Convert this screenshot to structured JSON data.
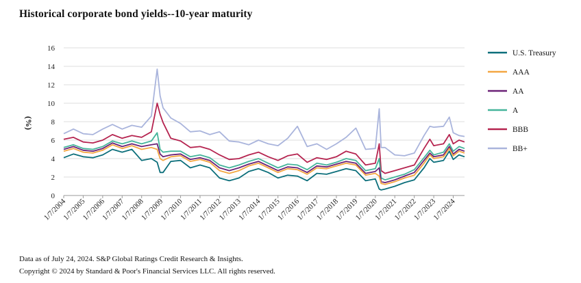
{
  "title": "Historical corporate bond yields--10-year maturity",
  "footer": {
    "line1": "Data as of July 24, 2024. S&P Global Ratings Credit Research & Insights.",
    "line2": "Copyright © 2024 by Standard & Poor's Financial Services LLC. All rights reserved."
  },
  "chart_data": {
    "type": "line",
    "title": "Historical corporate bond yields--10-year maturity",
    "ylabel": "(%)",
    "xlabel": "",
    "ylim": [
      0,
      16
    ],
    "yticks": [
      0,
      2,
      4,
      6,
      8,
      10,
      12,
      14,
      16
    ],
    "xlim": [
      2004.0,
      2024.58
    ],
    "categories": [
      "1/7/2004",
      "1/7/2005",
      "1/7/2006",
      "1/7/2007",
      "1/7/2008",
      "1/7/2009",
      "1/7/2010",
      "1/7/2011",
      "1/7/2012",
      "1/7/2013",
      "1/7/2014",
      "1/7/2015",
      "1/7/2016",
      "1/7/2017",
      "1/7/2018",
      "1/7/2019",
      "1/7/2020",
      "1/7/2021",
      "1/7/2022",
      "1/7/2023",
      "1/7/2024"
    ],
    "x": [
      2004.0,
      2004.5,
      2005.0,
      2005.5,
      2006.0,
      2006.5,
      2007.0,
      2007.5,
      2008.0,
      2008.5,
      2008.8,
      2008.95,
      2009.1,
      2009.5,
      2010.0,
      2010.5,
      2011.0,
      2011.5,
      2012.0,
      2012.5,
      2013.0,
      2013.5,
      2014.0,
      2014.5,
      2015.0,
      2015.5,
      2016.0,
      2016.5,
      2017.0,
      2017.5,
      2018.0,
      2018.5,
      2019.0,
      2019.5,
      2020.0,
      2020.2,
      2020.3,
      2020.5,
      2021.0,
      2021.5,
      2022.0,
      2022.5,
      2022.8,
      2023.0,
      2023.5,
      2023.8,
      2024.0,
      2024.3,
      2024.58
    ],
    "series": [
      {
        "name": "U.S. Treasury",
        "color": "#0b6e7a",
        "values": [
          4.1,
          4.5,
          4.2,
          4.1,
          4.4,
          5.0,
          4.7,
          5.0,
          3.8,
          4.0,
          3.6,
          2.5,
          2.5,
          3.7,
          3.8,
          3.0,
          3.3,
          3.0,
          1.9,
          1.6,
          1.9,
          2.6,
          2.9,
          2.5,
          1.9,
          2.2,
          2.1,
          1.6,
          2.4,
          2.3,
          2.6,
          2.9,
          2.7,
          1.6,
          1.8,
          0.7,
          0.6,
          0.7,
          1.0,
          1.4,
          1.7,
          3.0,
          4.0,
          3.6,
          3.8,
          4.8,
          3.9,
          4.4,
          4.2
        ]
      },
      {
        "name": "AAA",
        "color": "#f4a641",
        "values": [
          4.8,
          5.1,
          4.7,
          4.6,
          4.9,
          5.5,
          5.1,
          5.4,
          5.0,
          5.2,
          5.0,
          4.0,
          3.8,
          4.2,
          4.3,
          3.7,
          3.9,
          3.6,
          2.7,
          2.4,
          2.7,
          3.2,
          3.5,
          3.0,
          2.5,
          2.9,
          2.8,
          2.3,
          3.0,
          2.9,
          3.2,
          3.5,
          3.3,
          2.2,
          2.4,
          2.1,
          1.3,
          1.2,
          1.5,
          1.9,
          2.2,
          3.5,
          4.4,
          4.0,
          4.2,
          5.1,
          4.3,
          4.8,
          4.6
        ]
      },
      {
        "name": "AA",
        "color": "#6a2176",
        "values": [
          5.0,
          5.3,
          4.9,
          4.8,
          5.1,
          5.7,
          5.3,
          5.6,
          5.3,
          5.5,
          5.6,
          4.5,
          4.2,
          4.4,
          4.5,
          3.9,
          4.1,
          3.8,
          3.0,
          2.7,
          3.0,
          3.4,
          3.7,
          3.2,
          2.7,
          3.1,
          3.0,
          2.5,
          3.2,
          3.1,
          3.4,
          3.7,
          3.5,
          2.4,
          2.6,
          3.0,
          1.5,
          1.4,
          1.7,
          2.1,
          2.5,
          3.8,
          4.6,
          4.2,
          4.4,
          5.3,
          4.5,
          5.0,
          4.8
        ]
      },
      {
        "name": "A",
        "color": "#44b49a",
        "values": [
          5.2,
          5.5,
          5.1,
          5.0,
          5.3,
          5.9,
          5.6,
          5.9,
          5.6,
          5.9,
          6.8,
          5.0,
          4.7,
          4.8,
          4.8,
          4.2,
          4.4,
          4.1,
          3.3,
          3.0,
          3.3,
          3.7,
          4.0,
          3.5,
          3.0,
          3.4,
          3.3,
          2.8,
          3.5,
          3.3,
          3.6,
          4.0,
          3.8,
          2.7,
          2.9,
          4.0,
          1.9,
          1.7,
          2.0,
          2.3,
          2.8,
          4.1,
          4.9,
          4.4,
          4.7,
          5.6,
          4.8,
          5.3,
          5.1
        ]
      },
      {
        "name": "BBB",
        "color": "#b5234f",
        "values": [
          6.1,
          6.3,
          5.8,
          5.7,
          6.0,
          6.6,
          6.2,
          6.5,
          6.3,
          6.9,
          10.0,
          8.8,
          7.9,
          6.2,
          5.9,
          5.2,
          5.3,
          5.0,
          4.4,
          3.9,
          4.0,
          4.4,
          4.7,
          4.2,
          3.8,
          4.3,
          4.5,
          3.6,
          4.1,
          3.9,
          4.2,
          4.8,
          4.5,
          3.3,
          3.5,
          5.6,
          2.7,
          2.4,
          2.7,
          3.0,
          3.3,
          5.1,
          6.1,
          5.4,
          5.6,
          6.6,
          5.6,
          6.0,
          5.8
        ]
      },
      {
        "name": "BB+",
        "color": "#a9b4dc",
        "values": [
          6.7,
          7.2,
          6.7,
          6.6,
          7.2,
          7.7,
          7.2,
          7.6,
          7.4,
          8.6,
          13.7,
          10.8,
          9.5,
          8.4,
          7.8,
          6.9,
          7.0,
          6.6,
          6.9,
          5.9,
          5.8,
          5.5,
          6.0,
          5.6,
          5.4,
          6.2,
          7.5,
          5.3,
          5.6,
          5.0,
          5.6,
          6.3,
          7.3,
          5.0,
          5.1,
          9.4,
          5.2,
          5.2,
          4.4,
          4.3,
          4.6,
          6.5,
          7.5,
          7.4,
          7.5,
          8.5,
          6.8,
          6.5,
          6.4
        ]
      }
    ]
  }
}
